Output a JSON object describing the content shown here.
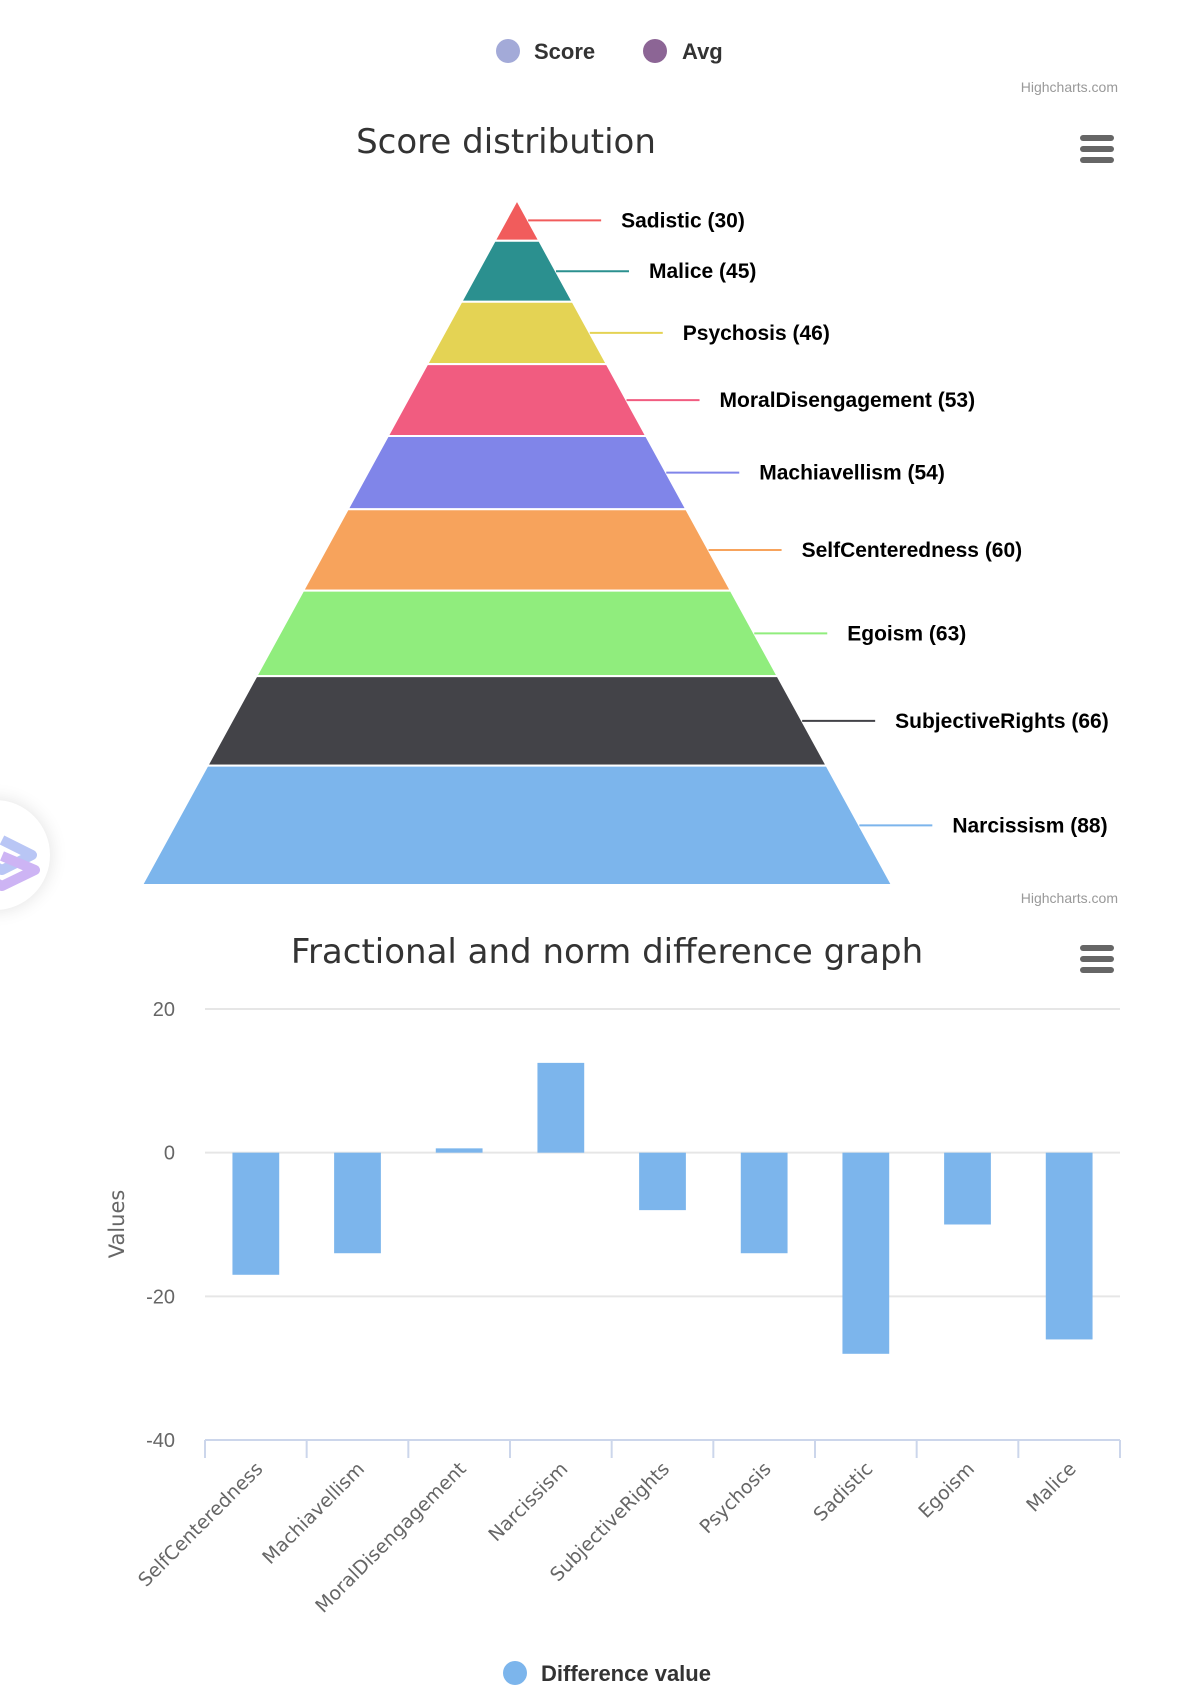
{
  "top_legend": {
    "items": [
      {
        "label": "Score",
        "color": "#a3aad8"
      },
      {
        "label": "Avg",
        "color": "#8c6595"
      }
    ]
  },
  "credits": "Highcharts.com",
  "chart_data": [
    {
      "type": "pyramid",
      "title": "Score distribution",
      "label_format": "{name} ({value})",
      "segments": [
        {
          "name": "Sadistic",
          "value": 30,
          "color": "#f15c5c"
        },
        {
          "name": "Malice",
          "value": 45,
          "color": "#2b908f"
        },
        {
          "name": "Psychosis",
          "value": 46,
          "color": "#e4d354"
        },
        {
          "name": "MoralDisengagement",
          "value": 53,
          "color": "#f15c80"
        },
        {
          "name": "Machiavellism",
          "value": 54,
          "color": "#8085e9"
        },
        {
          "name": "SelfCenteredness",
          "value": 60,
          "color": "#f7a35c"
        },
        {
          "name": "Egoism",
          "value": 63,
          "color": "#90ed7d"
        },
        {
          "name": "SubjectiveRights",
          "value": 66,
          "color": "#434348"
        },
        {
          "name": "Narcissism",
          "value": 88,
          "color": "#7cb5ec"
        }
      ]
    },
    {
      "type": "bar",
      "title": "Fractional and norm difference graph",
      "xlabel": "",
      "ylabel": "Values",
      "ylim": [
        -40,
        20
      ],
      "yticks": [
        20,
        0,
        -20,
        -40
      ],
      "grid": true,
      "legend_position": "bottom-center",
      "categories": [
        "SelfCenteredness",
        "Machiavellism",
        "MoralDisengagement",
        "Narcissism",
        "SubjectiveRights",
        "Psychosis",
        "Sadistic",
        "Egoism",
        "Malice"
      ],
      "series": [
        {
          "name": "Difference value",
          "color": "#7cb5ec",
          "values": [
            -17,
            -14,
            0.6,
            12.5,
            -8,
            -14,
            -28,
            -10,
            -26
          ]
        }
      ]
    }
  ]
}
